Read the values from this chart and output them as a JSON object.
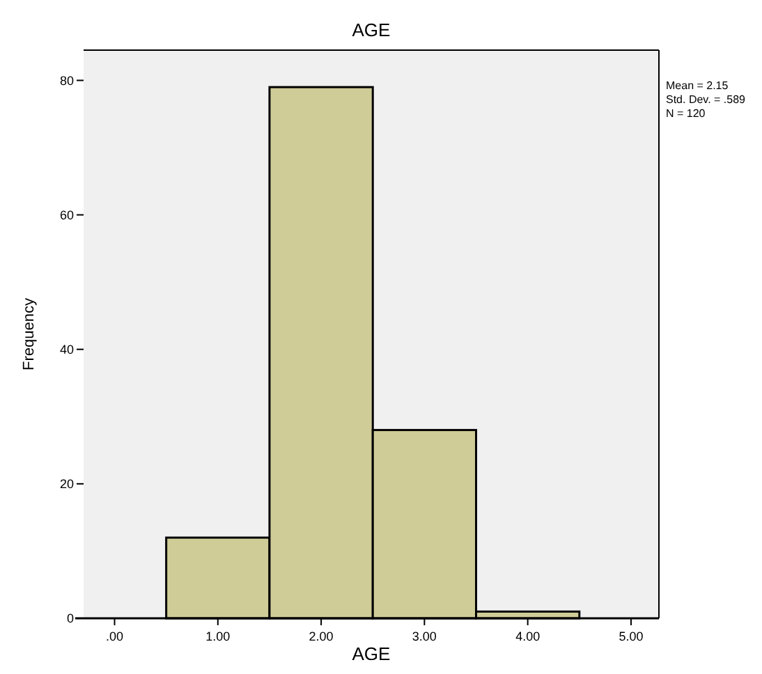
{
  "chart_data": {
    "type": "histogram",
    "title": "AGE",
    "xlabel": "AGE",
    "ylabel": "Frequency",
    "bins": [
      0.5,
      1.5,
      2.5,
      3.5,
      4.5
    ],
    "values": [
      12,
      79,
      28,
      1
    ],
    "color": "#d0cc98",
    "xlim": [
      -0.3,
      5.27
    ],
    "xticks": [
      {
        "value": 0,
        "label": ".00"
      },
      {
        "value": 1,
        "label": "1.00"
      },
      {
        "value": 2,
        "label": "2.00"
      },
      {
        "value": 3,
        "label": "3.00"
      },
      {
        "value": 4,
        "label": "4.00"
      },
      {
        "value": 5,
        "label": "5.00"
      }
    ],
    "ylim": [
      0,
      84.5
    ],
    "yticks": [
      0,
      20,
      40,
      60,
      80
    ],
    "grid": false,
    "annotations": [
      "Mean = 2.15",
      "Std. Dev. = .589",
      "N = 120"
    ]
  }
}
